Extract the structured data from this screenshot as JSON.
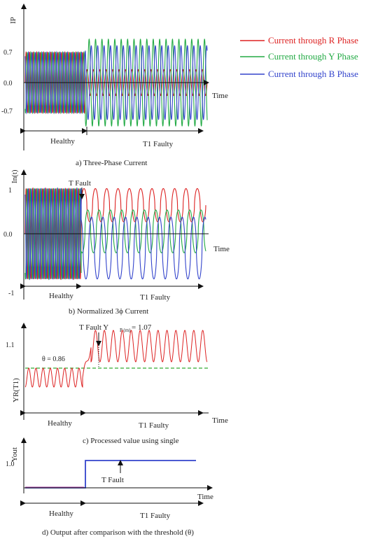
{
  "colors": {
    "R": "#dd2222",
    "Y": "#22aa44",
    "B": "#3344cc",
    "threshold": "#33aa33",
    "axis": "#111111"
  },
  "legend": [
    {
      "label": "Current through R Phase",
      "color": "#dd2222"
    },
    {
      "label": "Current through Y Phase",
      "color": "#22aa44"
    },
    {
      "label": "Current through B Phase",
      "color": "#3344cc"
    }
  ],
  "chart_data": [
    {
      "type": "line",
      "caption": "a) Three-Phase Current",
      "ylabel": "IP",
      "xlabel": "Time",
      "yticks": [
        "0.7",
        "0.0",
        "-0.7"
      ],
      "ylim": [
        -1.1,
        1.1
      ],
      "regions": [
        "Healthy",
        "T1 Faulty"
      ],
      "healthy_amplitude": 0.7,
      "fault_amplitude": {
        "R": 0.3,
        "Y": 1.0,
        "B": 0.85
      },
      "healthy_cycles": 17,
      "fault_cycles": 19,
      "series": [
        {
          "name": "Current through R Phase"
        },
        {
          "name": "Current through Y Phase"
        },
        {
          "name": "Current through B Phase"
        }
      ]
    },
    {
      "type": "line",
      "caption": "b) Normalized 3ϕ Current",
      "ylabel": "In(t)",
      "xlabel": "Time",
      "yticks": [
        "1",
        "0.0",
        "-1"
      ],
      "ylim": [
        -1.1,
        1.1
      ],
      "annotation": "T Fault",
      "regions": [
        "Healthy",
        "T1 Faulty"
      ],
      "healthy_amplitude": 0.95,
      "fault_offset": {
        "R": 0.6,
        "Y": 0.05,
        "B": -0.3
      },
      "fault_amplitude": {
        "R": 0.35,
        "Y": 0.45,
        "B": 0.65
      },
      "healthy_cycles": 17,
      "fault_cycles": 11
    },
    {
      "type": "line",
      "caption": "c) Processed value using single",
      "ylabel": "YR(T1)",
      "xlabel": "Time",
      "yticks": [
        "1.1"
      ],
      "threshold_label": "θ = 0.86",
      "threshold": 0.86,
      "annotation": "T  Fault Y",
      "annotation_sub": "P (m)",
      "annotation_value": "= 1.07",
      "regions": [
        "Healthy",
        "T1 Faulty"
      ],
      "healthy_center": 0.8,
      "healthy_amplitude": 0.06,
      "fault_center": 1.0,
      "fault_amplitude": 0.1,
      "healthy_cycles": 8,
      "fault_cycles": 13
    },
    {
      "type": "line",
      "caption": "d) Output after comparison with the threshold (θ)",
      "ylabel": "Yout",
      "xlabel": "Time",
      "yticks": [
        "1.0"
      ],
      "annotation": "T  Fault",
      "regions": [
        "Healthy",
        "T1 Faulty"
      ],
      "values": [
        0,
        1
      ]
    }
  ]
}
